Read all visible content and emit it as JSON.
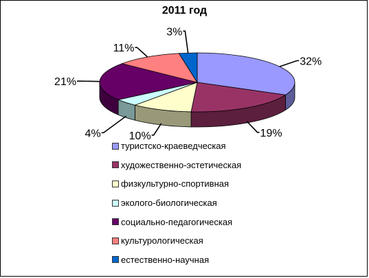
{
  "chart_data": {
    "type": "pie",
    "title": "2011 год",
    "categories": [
      "туристско-краеведческая",
      "художественно-эстетическая",
      "физкультурно-спортивная",
      "эколого-биологическая",
      "социально-педагогическая",
      "культурологическая",
      "естественно-научная"
    ],
    "values": [
      32,
      19,
      10,
      4,
      21,
      11,
      3
    ],
    "labels": [
      "32%",
      "19%",
      "10%",
      "4%",
      "21%",
      "11%",
      "3%"
    ],
    "colors": [
      "#9999ff",
      "#993366",
      "#ffffcc",
      "#ccffff",
      "#660066",
      "#ff8080",
      "#0066cc"
    ],
    "side_colors": [
      "#5c5c99",
      "#5c1f3d",
      "#99997a",
      "#7a9999",
      "#3d003d",
      "#994d4d",
      "#003d7a"
    ],
    "style": "3d",
    "legend_position": "bottom"
  }
}
